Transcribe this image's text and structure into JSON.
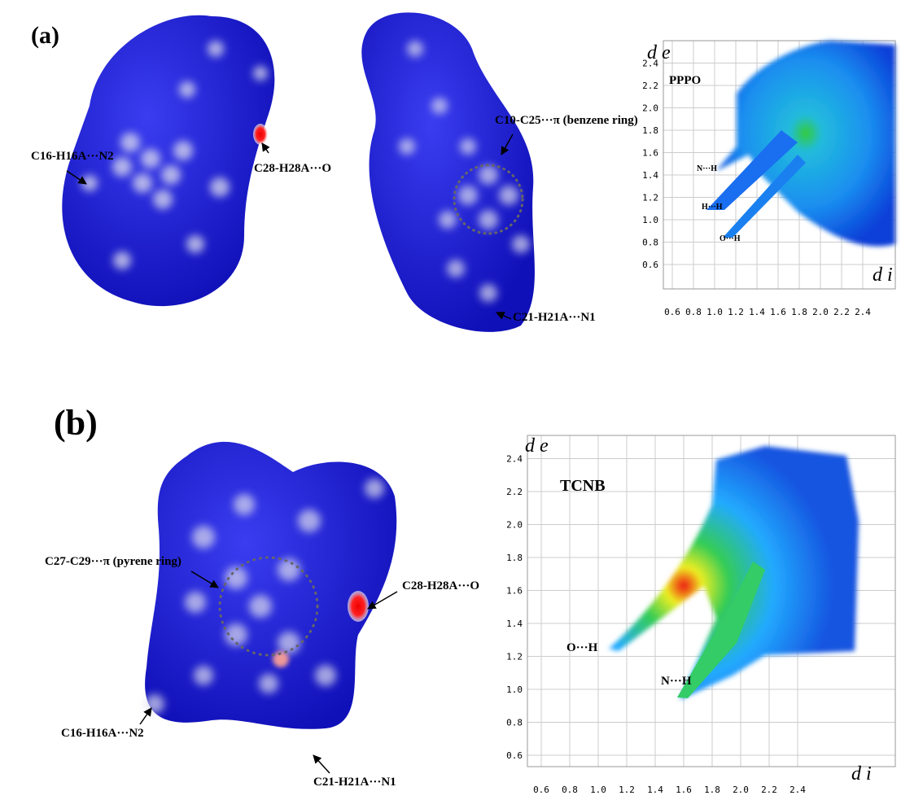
{
  "panel_a": {
    "label": "(a)",
    "annotations": [
      "C16-H16A···N2",
      "C28-H28A···O",
      "C10-C25···π (benzene ring)",
      "C21-H21A···N1"
    ],
    "plot": {
      "title": "PPPO",
      "y_axis_label": "d e",
      "x_axis_label": "d i",
      "yticks": [
        "0.6",
        "0.8",
        "1.0",
        "1.2",
        "1.4",
        "1.6",
        "1.8",
        "2.0",
        "2.2",
        "2.4"
      ],
      "xticks": [
        "0.6",
        "0.8",
        "1.0",
        "1.2",
        "1.4",
        "1.6",
        "1.8",
        "2.0",
        "2.2",
        "2.4"
      ],
      "contacts": [
        "N···H",
        "H···H",
        "O···H"
      ]
    }
  },
  "panel_b": {
    "label": "(b)",
    "annotations": [
      "C27-C29···π (pyrene ring)",
      "C28-H28A···O",
      "C16-H16A···N2",
      "C21-H21A···N1"
    ],
    "plot": {
      "title": "TCNB",
      "y_axis_label": "d e",
      "x_axis_label": "d i",
      "yticks": [
        "0.6",
        "0.8",
        "1.0",
        "1.2",
        "1.4",
        "1.6",
        "1.8",
        "2.0",
        "2.2",
        "2.4"
      ],
      "xticks": [
        "0.6",
        "0.8",
        "1.0",
        "1.2",
        "1.4",
        "1.6",
        "1.8",
        "2.0",
        "2.2",
        "2.4"
      ],
      "contacts": [
        "O···H",
        "N···H"
      ]
    }
  }
}
